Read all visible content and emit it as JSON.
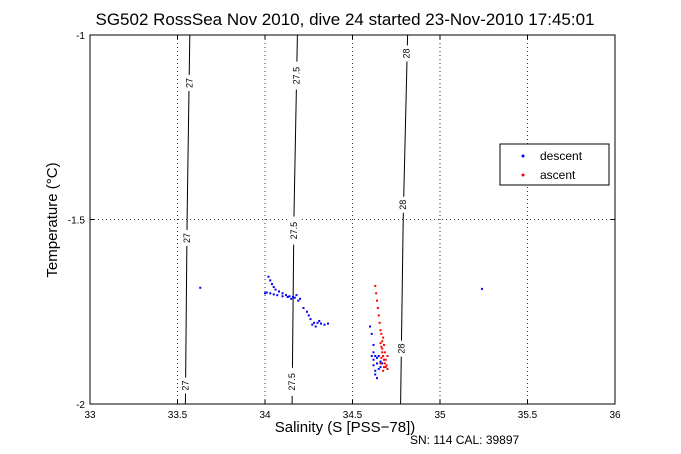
{
  "footer": "SN: 114  CAL: 39897",
  "colors": {
    "descent": "#0000ff",
    "ascent": "#ff0000",
    "axis": "#000000",
    "grid": "#000000"
  },
  "chart_data": {
    "type": "scatter",
    "title": "SG502 RossSea Nov 2010, dive 24 started 23-Nov-2010 17:45:01",
    "xlabel": "Salinity (S [PSS−78])",
    "ylabel": "Temperature (°C)",
    "xlim": [
      33,
      36
    ],
    "ylim": [
      -2,
      -1
    ],
    "xticks": [
      33,
      33.5,
      34,
      34.5,
      35,
      35.5,
      36
    ],
    "xtick_labels": [
      "33",
      "33.5",
      "34",
      "34.5",
      "35",
      "35.5",
      "36"
    ],
    "yticks": [
      -2,
      -1.5,
      -1
    ],
    "ytick_labels": [
      "-2",
      "-1.5",
      "-1"
    ],
    "grid": true,
    "legend_placement": "right",
    "contours": [
      {
        "label": "27",
        "points": [
          [
            33.545,
            -2
          ],
          [
            33.555,
            -1.5
          ],
          [
            33.57,
            -1
          ]
        ],
        "label_positions": [
          [
            33.545,
            -1.95
          ],
          [
            33.555,
            -1.55
          ],
          [
            33.57,
            -1.13
          ]
        ]
      },
      {
        "label": "27.5",
        "points": [
          [
            34.155,
            -2
          ],
          [
            34.165,
            -1.5
          ],
          [
            34.185,
            -1
          ]
        ],
        "label_positions": [
          [
            34.155,
            -1.94
          ],
          [
            34.165,
            -1.53
          ],
          [
            34.18,
            -1.11
          ]
        ]
      },
      {
        "label": "28",
        "points": [
          [
            34.775,
            -2
          ],
          [
            34.79,
            -1.5
          ],
          [
            34.815,
            -1
          ]
        ],
        "label_positions": [
          [
            34.78,
            -1.85
          ],
          [
            34.79,
            -1.46
          ],
          [
            34.81,
            -1.05
          ]
        ]
      }
    ],
    "series": [
      {
        "name": "descent",
        "points": [
          [
            33.63,
            -1.685
          ],
          [
            35.24,
            -1.688
          ],
          [
            34.02,
            -1.655
          ],
          [
            34.03,
            -1.665
          ],
          [
            34.04,
            -1.675
          ],
          [
            34.05,
            -1.683
          ],
          [
            34.06,
            -1.69
          ],
          [
            34.08,
            -1.695
          ],
          [
            34.1,
            -1.7
          ],
          [
            34.12,
            -1.705
          ],
          [
            34.14,
            -1.708
          ],
          [
            34.16,
            -1.71
          ],
          [
            34.18,
            -1.705
          ],
          [
            34.2,
            -1.715
          ],
          [
            34.19,
            -1.72
          ],
          [
            34.17,
            -1.712
          ],
          [
            34.15,
            -1.715
          ],
          [
            34.13,
            -1.71
          ],
          [
            34.1,
            -1.708
          ],
          [
            34.07,
            -1.705
          ],
          [
            34.05,
            -1.703
          ],
          [
            34.03,
            -1.7
          ],
          [
            34.01,
            -1.698
          ],
          [
            34.0,
            -1.7
          ],
          [
            34.22,
            -1.74
          ],
          [
            34.24,
            -1.75
          ],
          [
            34.25,
            -1.76
          ],
          [
            34.26,
            -1.77
          ],
          [
            34.28,
            -1.78
          ],
          [
            34.3,
            -1.78
          ],
          [
            34.32,
            -1.782
          ],
          [
            34.34,
            -1.785
          ],
          [
            34.36,
            -1.782
          ],
          [
            34.29,
            -1.79
          ],
          [
            34.27,
            -1.785
          ],
          [
            34.31,
            -1.775
          ],
          [
            34.6,
            -1.79
          ],
          [
            34.61,
            -1.81
          ],
          [
            34.62,
            -1.84
          ],
          [
            34.63,
            -1.87
          ],
          [
            34.62,
            -1.88
          ],
          [
            34.61,
            -1.87
          ],
          [
            34.64,
            -1.89
          ],
          [
            34.65,
            -1.905
          ],
          [
            34.63,
            -1.91
          ],
          [
            34.62,
            -1.895
          ],
          [
            34.64,
            -1.875
          ],
          [
            34.66,
            -1.885
          ],
          [
            34.65,
            -1.87
          ],
          [
            34.63,
            -1.92
          ],
          [
            34.64,
            -1.93
          ],
          [
            34.66,
            -1.9
          ],
          [
            34.67,
            -1.89
          ],
          [
            34.62,
            -1.86
          ]
        ]
      },
      {
        "name": "ascent",
        "points": [
          [
            34.63,
            -1.68
          ],
          [
            34.635,
            -1.7
          ],
          [
            34.64,
            -1.72
          ],
          [
            34.645,
            -1.74
          ],
          [
            34.65,
            -1.76
          ],
          [
            34.655,
            -1.78
          ],
          [
            34.66,
            -1.8
          ],
          [
            34.665,
            -1.81
          ],
          [
            34.67,
            -1.83
          ],
          [
            34.665,
            -1.845
          ],
          [
            34.67,
            -1.86
          ],
          [
            34.675,
            -1.87
          ],
          [
            34.68,
            -1.88
          ],
          [
            34.685,
            -1.89
          ],
          [
            34.69,
            -1.9
          ],
          [
            34.7,
            -1.905
          ],
          [
            34.695,
            -1.895
          ],
          [
            34.68,
            -1.9
          ],
          [
            34.675,
            -1.91
          ],
          [
            34.66,
            -1.89
          ],
          [
            34.665,
            -1.875
          ],
          [
            34.685,
            -1.86
          ],
          [
            34.7,
            -1.87
          ],
          [
            34.69,
            -1.88
          ],
          [
            34.67,
            -1.85
          ],
          [
            34.68,
            -1.84
          ],
          [
            34.66,
            -1.835
          ],
          [
            34.675,
            -1.82
          ]
        ]
      }
    ]
  }
}
